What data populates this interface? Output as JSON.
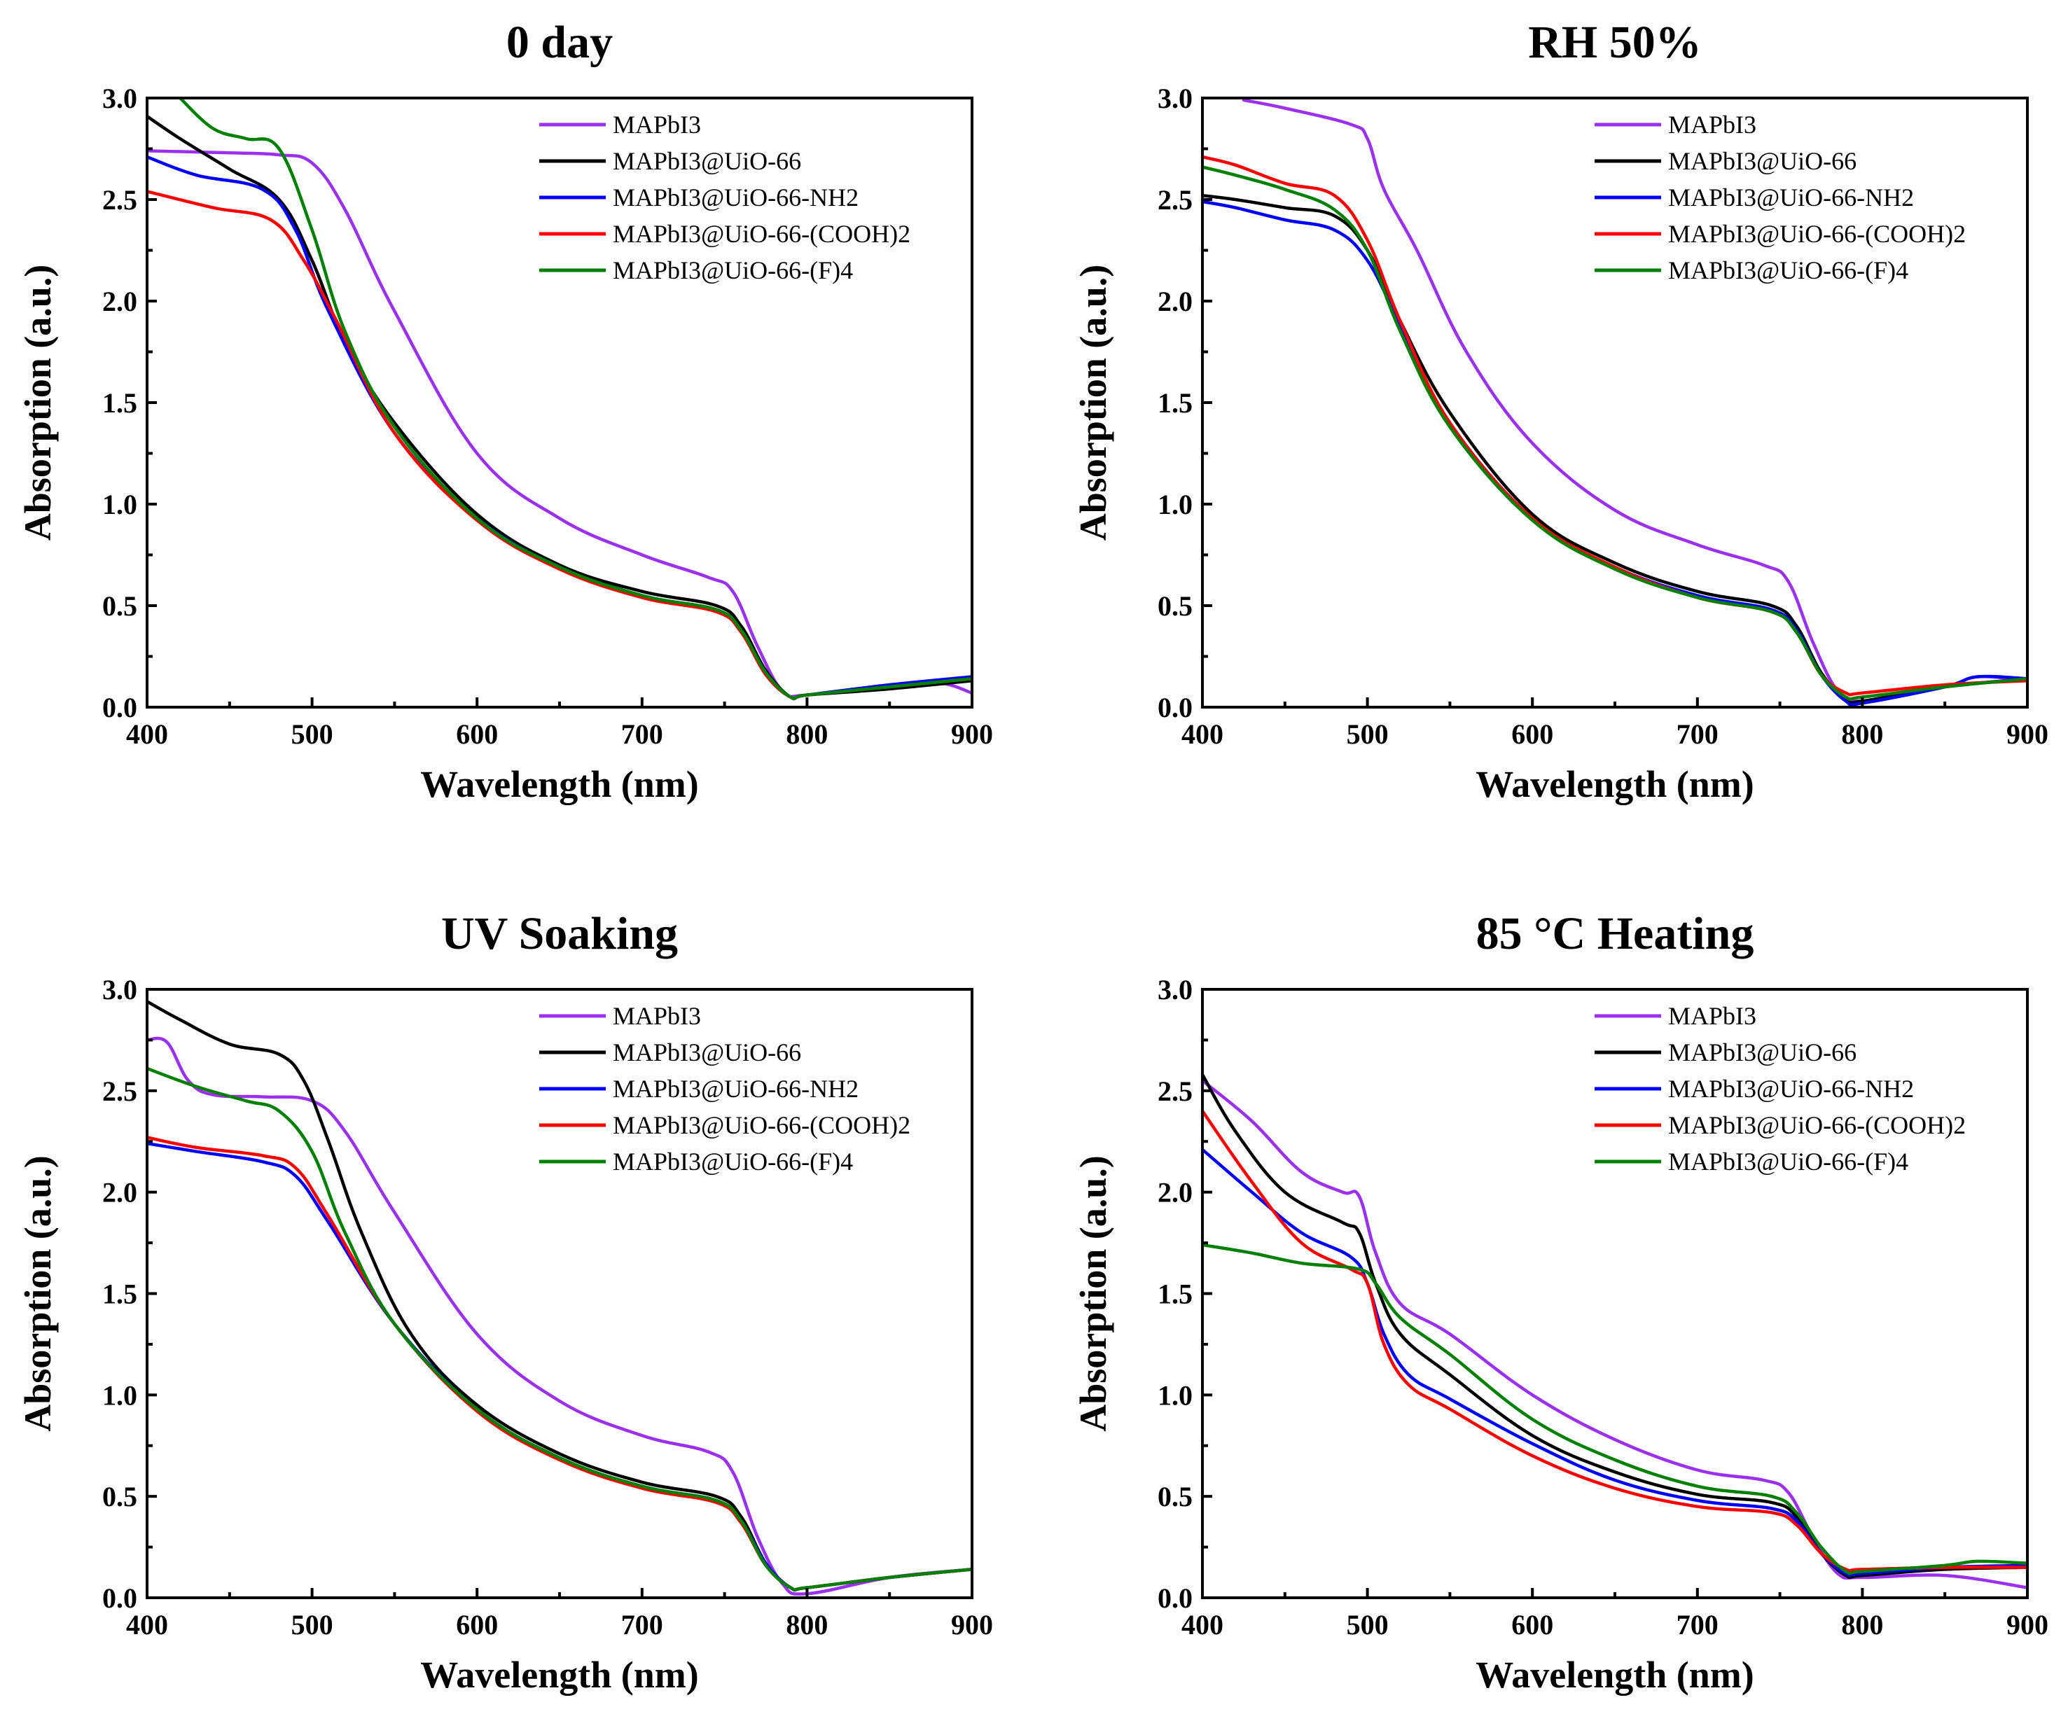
{
  "chart_data": [
    {
      "type": "line",
      "title": "0 day",
      "xlabel": "Wavelength (nm)",
      "ylabel": "Absorption (a.u.)",
      "xlim": [
        400,
        900
      ],
      "ylim": [
        0,
        3.0
      ],
      "xticks": [
        "400",
        "500",
        "600",
        "700",
        "800",
        "900"
      ],
      "yticks": [
        "0.0",
        "0.5",
        "1.0",
        "1.5",
        "2.0",
        "2.5",
        "3.0"
      ],
      "legend_position": "top-right",
      "series": [
        {
          "name": "MAPbI3",
          "color": "#9b30f0",
          "x": [
            400,
            450,
            480,
            500,
            520,
            550,
            600,
            650,
            700,
            740,
            755,
            770,
            785,
            800,
            850,
            880,
            900
          ],
          "y": [
            2.74,
            2.73,
            2.72,
            2.68,
            2.45,
            1.95,
            1.25,
            0.93,
            0.75,
            0.64,
            0.57,
            0.3,
            0.08,
            0.06,
            0.11,
            0.12,
            0.07
          ]
        },
        {
          "name": "MAPbI3@UiO-66",
          "color": "#000000",
          "x": [
            400,
            420,
            450,
            480,
            500,
            520,
            550,
            600,
            650,
            700,
            745,
            760,
            775,
            790,
            800,
            850,
            900
          ],
          "y": [
            2.91,
            2.8,
            2.65,
            2.5,
            2.2,
            1.8,
            1.4,
            0.95,
            0.7,
            0.57,
            0.5,
            0.4,
            0.18,
            0.05,
            0.06,
            0.09,
            0.13
          ]
        },
        {
          "name": "MAPbI3@UiO-66-NH2",
          "color": "#0000ff",
          "x": [
            400,
            430,
            470,
            490,
            510,
            550,
            600,
            650,
            700,
            745,
            760,
            775,
            790,
            800,
            850,
            900
          ],
          "y": [
            2.71,
            2.62,
            2.55,
            2.35,
            1.95,
            1.35,
            0.93,
            0.69,
            0.55,
            0.48,
            0.38,
            0.17,
            0.05,
            0.06,
            0.11,
            0.15
          ]
        },
        {
          "name": "MAPbI3@UiO-66-(COOH)2",
          "color": "#ff0000",
          "x": [
            400,
            440,
            475,
            495,
            515,
            550,
            600,
            650,
            700,
            745,
            760,
            775,
            790,
            800,
            850,
            900
          ],
          "y": [
            2.54,
            2.46,
            2.4,
            2.2,
            1.9,
            1.35,
            0.92,
            0.68,
            0.54,
            0.47,
            0.37,
            0.16,
            0.05,
            0.06,
            0.1,
            0.14
          ]
        },
        {
          "name": "MAPbI3@UiO-66-(F)4",
          "color": "#008000",
          "x": [
            420,
            440,
            460,
            480,
            500,
            520,
            550,
            600,
            650,
            700,
            745,
            760,
            775,
            790,
            800,
            850,
            900
          ],
          "y": [
            3.0,
            2.85,
            2.8,
            2.75,
            2.35,
            1.85,
            1.38,
            0.93,
            0.69,
            0.55,
            0.48,
            0.38,
            0.17,
            0.05,
            0.06,
            0.1,
            0.14
          ]
        }
      ]
    },
    {
      "type": "line",
      "title": "RH 50%",
      "xlabel": "Wavelength (nm)",
      "ylabel": "Absorption (a.u.)",
      "xlim": [
        400,
        900
      ],
      "ylim": [
        0,
        3.0
      ],
      "xticks": [
        "400",
        "500",
        "600",
        "700",
        "800",
        "900"
      ],
      "yticks": [
        "0.0",
        "0.5",
        "1.0",
        "1.5",
        "2.0",
        "2.5",
        "3.0"
      ],
      "legend_position": "top-right",
      "series": [
        {
          "name": "MAPbI3",
          "color": "#9b30f0",
          "x": [
            425,
            450,
            490,
            500,
            510,
            530,
            560,
            600,
            650,
            700,
            740,
            755,
            770,
            785,
            800,
            850,
            870,
            900
          ],
          "y": [
            2.99,
            2.95,
            2.87,
            2.8,
            2.55,
            2.25,
            1.75,
            1.3,
            0.97,
            0.8,
            0.7,
            0.62,
            0.32,
            0.08,
            0.03,
            0.1,
            0.15,
            0.13
          ]
        },
        {
          "name": "MAPbI3@UiO-66",
          "color": "#000000",
          "x": [
            400,
            420,
            450,
            480,
            500,
            520,
            550,
            600,
            650,
            700,
            745,
            760,
            775,
            790,
            800,
            850,
            900
          ],
          "y": [
            2.52,
            2.5,
            2.46,
            2.42,
            2.25,
            1.9,
            1.45,
            0.95,
            0.71,
            0.57,
            0.5,
            0.4,
            0.17,
            0.04,
            0.03,
            0.1,
            0.14
          ]
        },
        {
          "name": "MAPbI3@UiO-66-NH2",
          "color": "#0000ff",
          "x": [
            400,
            420,
            450,
            480,
            500,
            520,
            550,
            600,
            650,
            700,
            745,
            760,
            775,
            790,
            800,
            850,
            870,
            900
          ],
          "y": [
            2.49,
            2.46,
            2.4,
            2.35,
            2.2,
            1.88,
            1.4,
            0.93,
            0.69,
            0.55,
            0.48,
            0.38,
            0.16,
            0.03,
            0.02,
            0.1,
            0.15,
            0.14
          ]
        },
        {
          "name": "MAPbI3@UiO-66-(COOH)2",
          "color": "#ff0000",
          "x": [
            400,
            420,
            450,
            480,
            500,
            520,
            550,
            600,
            650,
            700,
            745,
            760,
            775,
            790,
            800,
            850,
            900
          ],
          "y": [
            2.71,
            2.67,
            2.58,
            2.52,
            2.3,
            1.9,
            1.4,
            0.93,
            0.69,
            0.54,
            0.47,
            0.37,
            0.16,
            0.07,
            0.07,
            0.11,
            0.13
          ]
        },
        {
          "name": "MAPbI3@UiO-66-(F)4",
          "color": "#008000",
          "x": [
            400,
            420,
            450,
            480,
            500,
            520,
            550,
            600,
            650,
            700,
            745,
            760,
            775,
            790,
            800,
            850,
            900
          ],
          "y": [
            2.66,
            2.62,
            2.55,
            2.45,
            2.25,
            1.85,
            1.38,
            0.92,
            0.68,
            0.54,
            0.47,
            0.37,
            0.16,
            0.05,
            0.05,
            0.1,
            0.14
          ]
        }
      ]
    },
    {
      "type": "line",
      "title": "UV Soaking",
      "xlabel": "Wavelength (nm)",
      "ylabel": "Absorption (a.u.)",
      "xlim": [
        400,
        900
      ],
      "ylim": [
        0,
        3.0
      ],
      "xticks": [
        "400",
        "500",
        "600",
        "700",
        "800",
        "900"
      ],
      "yticks": [
        "0.0",
        "0.5",
        "1.0",
        "1.5",
        "2.0",
        "2.5",
        "3.0"
      ],
      "legend_position": "top-right",
      "series": [
        {
          "name": "MAPbI3",
          "color": "#9b30f0",
          "x": [
            400,
            412,
            425,
            440,
            470,
            500,
            520,
            550,
            600,
            650,
            700,
            740,
            755,
            770,
            785,
            800,
            850,
            900
          ],
          "y": [
            2.75,
            2.74,
            2.55,
            2.48,
            2.47,
            2.45,
            2.3,
            1.9,
            1.3,
            0.97,
            0.8,
            0.72,
            0.62,
            0.3,
            0.07,
            0.02,
            0.1,
            0.14
          ]
        },
        {
          "name": "MAPbI3@UiO-66",
          "color": "#000000",
          "x": [
            400,
            420,
            450,
            480,
            495,
            510,
            530,
            560,
            600,
            650,
            700,
            745,
            760,
            775,
            790,
            800,
            850,
            900
          ],
          "y": [
            2.94,
            2.85,
            2.73,
            2.68,
            2.55,
            2.25,
            1.8,
            1.3,
            0.95,
            0.71,
            0.57,
            0.5,
            0.4,
            0.17,
            0.05,
            0.05,
            0.1,
            0.14
          ]
        },
        {
          "name": "MAPbI3@UiO-66-NH2",
          "color": "#0000ff",
          "x": [
            400,
            430,
            470,
            490,
            510,
            550,
            600,
            650,
            700,
            745,
            760,
            775,
            790,
            800,
            850,
            900
          ],
          "y": [
            2.24,
            2.2,
            2.15,
            2.08,
            1.85,
            1.35,
            0.93,
            0.69,
            0.55,
            0.48,
            0.38,
            0.17,
            0.05,
            0.05,
            0.1,
            0.14
          ]
        },
        {
          "name": "MAPbI3@UiO-66-(COOH)2",
          "color": "#ff0000",
          "x": [
            400,
            430,
            470,
            490,
            510,
            550,
            600,
            650,
            700,
            745,
            760,
            775,
            790,
            800,
            850,
            900
          ],
          "y": [
            2.27,
            2.22,
            2.18,
            2.12,
            1.88,
            1.35,
            0.92,
            0.68,
            0.54,
            0.47,
            0.37,
            0.16,
            0.05,
            0.05,
            0.1,
            0.14
          ]
        },
        {
          "name": "MAPbI3@UiO-66-(F)4",
          "color": "#008000",
          "x": [
            400,
            430,
            460,
            480,
            500,
            520,
            550,
            600,
            650,
            700,
            745,
            760,
            775,
            790,
            800,
            850,
            900
          ],
          "y": [
            2.61,
            2.52,
            2.45,
            2.4,
            2.2,
            1.8,
            1.35,
            0.93,
            0.69,
            0.55,
            0.48,
            0.38,
            0.16,
            0.05,
            0.05,
            0.1,
            0.14
          ]
        }
      ]
    },
    {
      "type": "line",
      "title": "85 °C Heating",
      "xlabel": "Wavelength (nm)",
      "ylabel": "Absorption (a.u.)",
      "xlim": [
        400,
        900
      ],
      "ylim": [
        0,
        3.0
      ],
      "xticks": [
        "400",
        "500",
        "600",
        "700",
        "800",
        "900"
      ],
      "yticks": [
        "0.0",
        "0.5",
        "1.0",
        "1.5",
        "2.0",
        "2.5",
        "3.0"
      ],
      "legend_position": "top-right",
      "series": [
        {
          "name": "MAPbI3",
          "color": "#9b30f0",
          "x": [
            400,
            430,
            460,
            485,
            495,
            505,
            520,
            550,
            600,
            650,
            700,
            740,
            755,
            770,
            785,
            800,
            850,
            900
          ],
          "y": [
            2.55,
            2.35,
            2.1,
            2.0,
            1.98,
            1.7,
            1.45,
            1.3,
            1.0,
            0.78,
            0.63,
            0.58,
            0.52,
            0.3,
            0.12,
            0.1,
            0.11,
            0.05
          ]
        },
        {
          "name": "MAPbI3@UiO-66",
          "color": "#000000",
          "x": [
            400,
            420,
            450,
            485,
            495,
            505,
            520,
            550,
            600,
            650,
            700,
            745,
            760,
            775,
            790,
            800,
            850,
            900
          ],
          "y": [
            2.58,
            2.3,
            2.0,
            1.85,
            1.8,
            1.55,
            1.3,
            1.1,
            0.8,
            0.62,
            0.51,
            0.47,
            0.4,
            0.22,
            0.11,
            0.11,
            0.14,
            0.15
          ]
        },
        {
          "name": "MAPbI3@UiO-66-NH2",
          "color": "#0000ff",
          "x": [
            400,
            430,
            460,
            490,
            500,
            510,
            525,
            550,
            600,
            650,
            700,
            745,
            760,
            775,
            790,
            800,
            850,
            900
          ],
          "y": [
            2.21,
            2.0,
            1.8,
            1.68,
            1.55,
            1.3,
            1.1,
            0.98,
            0.76,
            0.58,
            0.48,
            0.44,
            0.38,
            0.22,
            0.12,
            0.12,
            0.15,
            0.16
          ]
        },
        {
          "name": "MAPbI3@UiO-66-(COOH)2",
          "color": "#ff0000",
          "x": [
            400,
            430,
            460,
            490,
            500,
            510,
            525,
            550,
            600,
            650,
            700,
            745,
            760,
            775,
            790,
            800,
            850,
            900
          ],
          "y": [
            2.4,
            2.05,
            1.75,
            1.62,
            1.55,
            1.25,
            1.05,
            0.93,
            0.7,
            0.54,
            0.45,
            0.42,
            0.36,
            0.22,
            0.14,
            0.14,
            0.15,
            0.15
          ]
        },
        {
          "name": "MAPbI3@UiO-66-(F)4",
          "color": "#008000",
          "x": [
            400,
            430,
            460,
            495,
            505,
            520,
            550,
            600,
            650,
            700,
            745,
            760,
            775,
            790,
            800,
            850,
            870,
            900
          ],
          "y": [
            1.74,
            1.7,
            1.65,
            1.62,
            1.55,
            1.38,
            1.2,
            0.88,
            0.68,
            0.55,
            0.5,
            0.42,
            0.25,
            0.13,
            0.13,
            0.16,
            0.18,
            0.17
          ]
        }
      ]
    }
  ]
}
